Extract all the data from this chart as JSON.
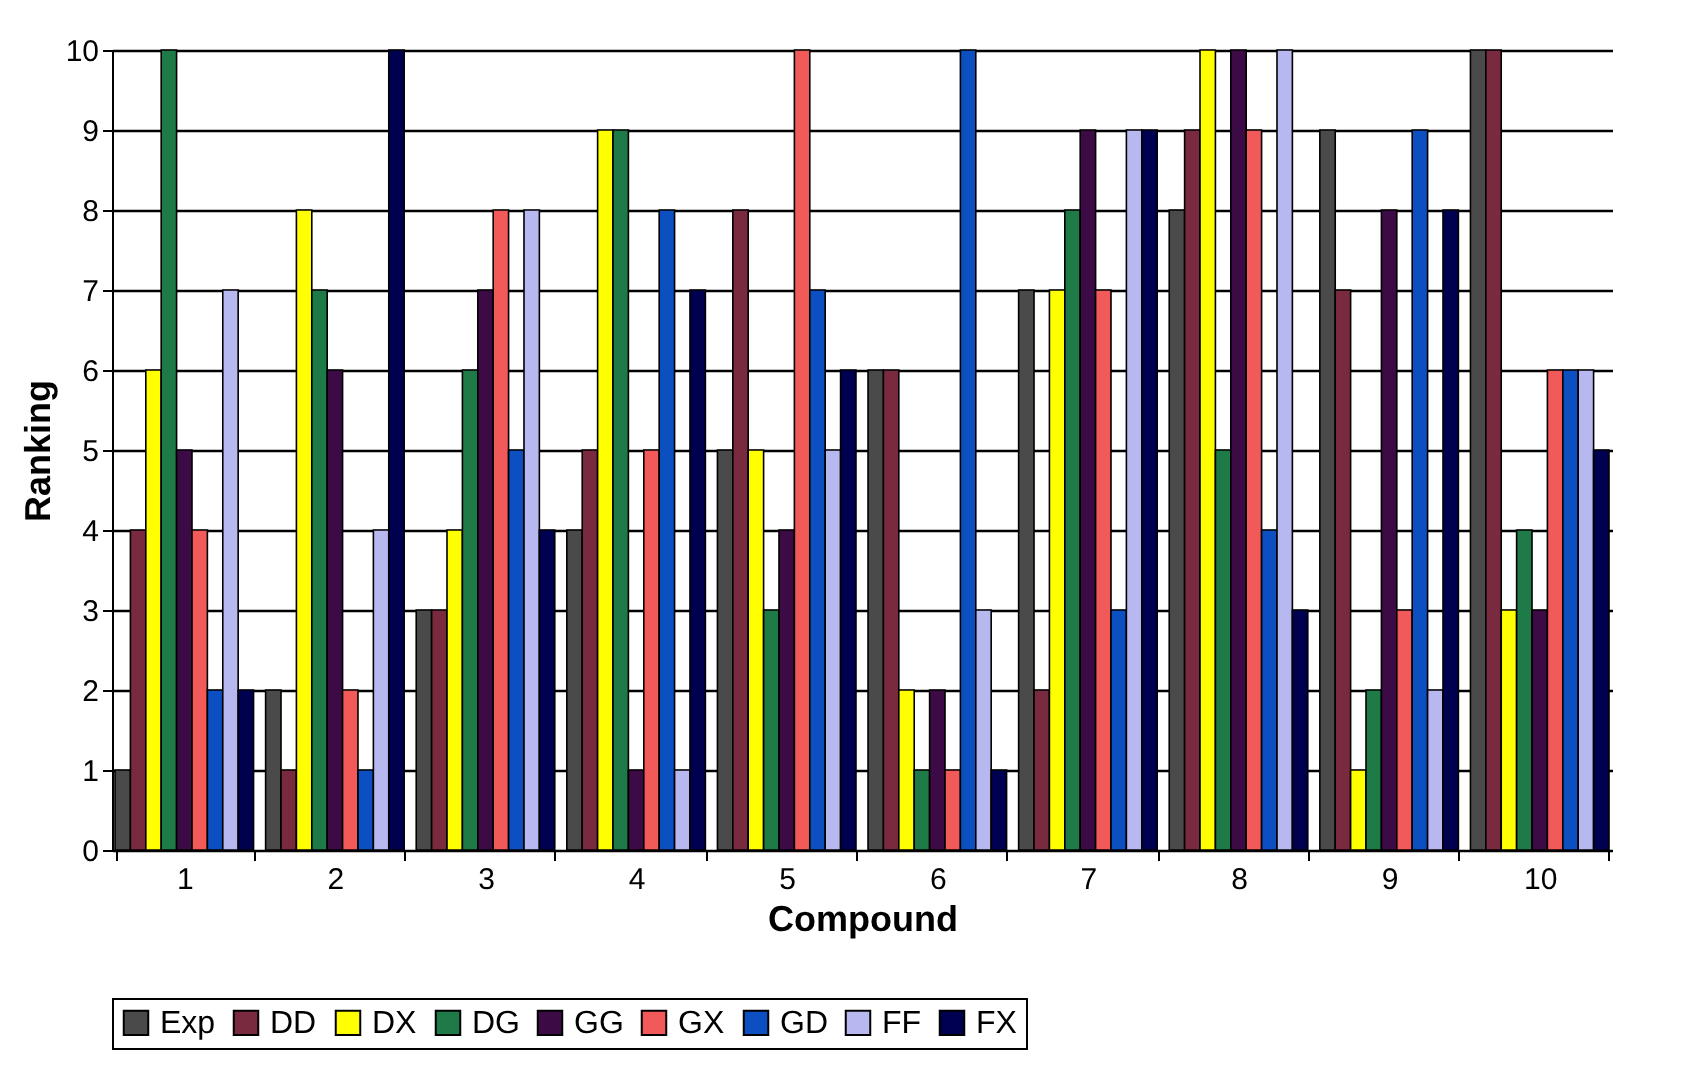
{
  "chart_data": {
    "type": "bar",
    "xlabel": "Compound",
    "ylabel": "Ranking",
    "categories": [
      "1",
      "2",
      "3",
      "4",
      "5",
      "6",
      "7",
      "8",
      "9",
      "10"
    ],
    "series": [
      {
        "name": "Exp",
        "color": "#4a4a4a",
        "values": [
          1,
          2,
          3,
          4,
          5,
          6,
          7,
          8,
          9,
          10
        ]
      },
      {
        "name": "DD",
        "color": "#7a2a3e",
        "values": [
          4,
          1,
          3,
          5,
          8,
          6,
          2,
          9,
          7,
          10
        ]
      },
      {
        "name": "DX",
        "color": "#ffff00",
        "values": [
          6,
          8,
          4,
          9,
          5,
          2,
          7,
          10,
          1,
          3
        ]
      },
      {
        "name": "DG",
        "color": "#1e7a46",
        "values": [
          10,
          7,
          6,
          9,
          3,
          1,
          8,
          5,
          2,
          4
        ]
      },
      {
        "name": "GG",
        "color": "#3c0a45",
        "values": [
          5,
          6,
          7,
          1,
          4,
          2,
          9,
          10,
          8,
          3
        ]
      },
      {
        "name": "GX",
        "color": "#f25a5a",
        "values": [
          4,
          2,
          8,
          5,
          10,
          1,
          7,
          9,
          3,
          6
        ]
      },
      {
        "name": "GD",
        "color": "#0b4fc0",
        "values": [
          2,
          1,
          5,
          8,
          7,
          10,
          3,
          4,
          9,
          6
        ]
      },
      {
        "name": "FF",
        "color": "#b8b8f0",
        "values": [
          7,
          4,
          8,
          1,
          5,
          3,
          9,
          10,
          2,
          6
        ]
      },
      {
        "name": "FX",
        "color": "#000050",
        "values": [
          2,
          10,
          4,
          7,
          6,
          1,
          9,
          3,
          8,
          5
        ]
      }
    ],
    "ylim": [
      0,
      10
    ],
    "yticks": [
      0,
      1,
      2,
      3,
      4,
      5,
      6,
      7,
      8,
      9,
      10
    ],
    "grid": "y",
    "legend": "bottom"
  }
}
